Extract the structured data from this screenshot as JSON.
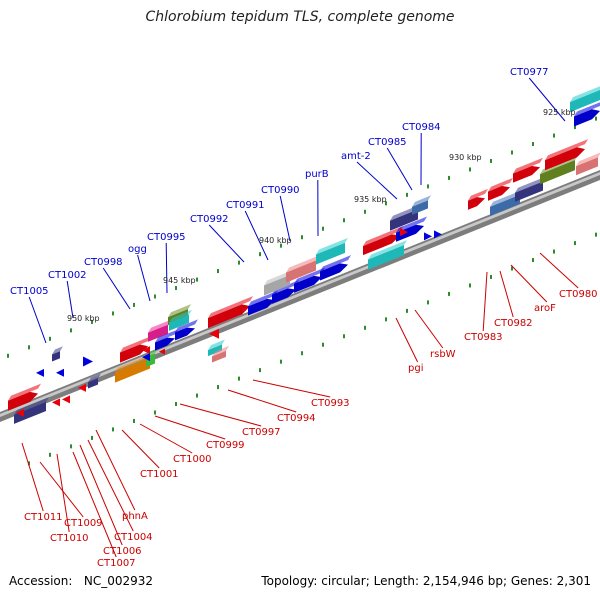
{
  "title": "Chlorobium tepidum TLS, complete genome",
  "footer": {
    "accession_label": "Accession:",
    "accession_value": "NC_002932",
    "topology_label": "Topology:",
    "topology_value": "circular",
    "length_label": "Length:",
    "length_value": "2,154,946 bp",
    "genes_label": "Genes:",
    "genes_value": "2,301"
  },
  "colors": {
    "backbone": "#808080",
    "tick": "#2e8b2e",
    "top_label": "#0000cc",
    "bottom_label": "#cc0000",
    "red": "#e8000b",
    "blue": "#0000e0",
    "navy": "#3a3a8a",
    "cyan": "#22cccc",
    "pink": "#ee2299",
    "olive": "#6b8e23",
    "salmon": "#f08080",
    "grey": "#b8b8b8",
    "orange": "#ee8800",
    "green": "#44cc44",
    "steel": "#4477bb"
  },
  "scale_labels": [
    "950 kbp",
    "945 kbp",
    "940 kbp",
    "935 kbp",
    "930 kbp",
    "925 kbp"
  ],
  "top_labels": [
    "CT1005",
    "CT1002",
    "CT0998",
    "ogg",
    "CT0995",
    "CT0992",
    "CT0991",
    "CT0990",
    "purB",
    "amt-2",
    "CT0985",
    "CT0984",
    "CT0977"
  ],
  "bottom_labels": [
    "CT1011",
    "CT1009",
    "CT1010",
    "CT1006",
    "CT1007",
    "CT1004",
    "phnA",
    "CT1001",
    "CT1000",
    "CT0999",
    "CT0997",
    "CT0994",
    "CT0993",
    "pgi",
    "rsbW",
    "CT0983",
    "CT0982",
    "aroF",
    "CT0980"
  ]
}
